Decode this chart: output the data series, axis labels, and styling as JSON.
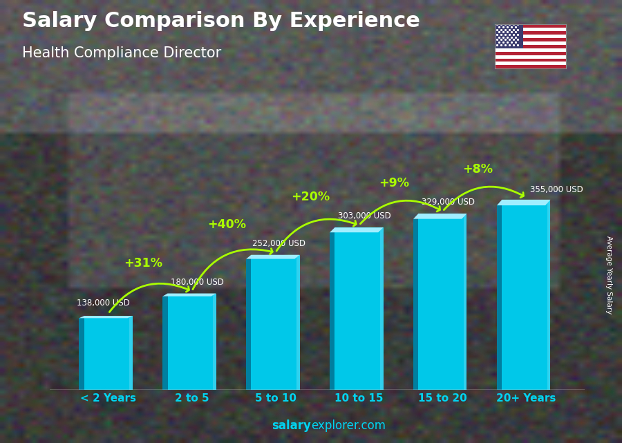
{
  "title": "Salary Comparison By Experience",
  "subtitle": "Health Compliance Director",
  "categories": [
    "< 2 Years",
    "2 to 5",
    "5 to 10",
    "10 to 15",
    "15 to 20",
    "20+ Years"
  ],
  "values": [
    138000,
    180000,
    252000,
    303000,
    329000,
    355000
  ],
  "value_labels": [
    "138,000 USD",
    "180,000 USD",
    "252,000 USD",
    "303,000 USD",
    "329,000 USD",
    "355,000 USD"
  ],
  "pct_changes": [
    "+31%",
    "+40%",
    "+20%",
    "+9%",
    "+8%"
  ],
  "bar_color_main": "#00c8e8",
  "bar_color_dark": "#007fa0",
  "bar_color_top": "#a0eeff",
  "bg_color": "#3a3d42",
  "title_color": "#ffffff",
  "subtitle_color": "#ffffff",
  "label_color": "#ffffff",
  "pct_color": "#aaff00",
  "tick_label_color": "#00d4f0",
  "ylabel": "Average Yearly Salary",
  "footer_bold": "salary",
  "footer_normal": "explorer.com",
  "ylim": [
    0,
    430000
  ]
}
